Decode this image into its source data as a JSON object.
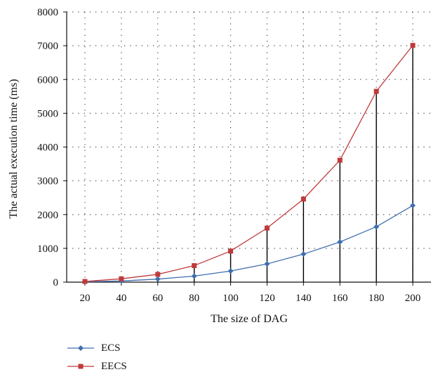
{
  "chart_data": {
    "type": "line",
    "title": "",
    "xlabel": "The size of DAG",
    "ylabel": "The actual execution time (ms)",
    "categories": [
      "20",
      "40",
      "60",
      "80",
      "100",
      "120",
      "140",
      "160",
      "180",
      "200"
    ],
    "x": [
      20,
      40,
      60,
      80,
      100,
      120,
      140,
      160,
      180,
      200
    ],
    "xlim": [
      10,
      210
    ],
    "ylim": [
      0,
      8000
    ],
    "yticks": [
      "0",
      "1000",
      "2000",
      "3000",
      "4000",
      "5000",
      "6000",
      "7000",
      "8000"
    ],
    "series": [
      {
        "name": "ECS",
        "color": "#3f6fad",
        "marker": "diamond",
        "values": [
          10,
          35,
          90,
          180,
          330,
          540,
          830,
          1190,
          1640,
          2270
        ]
      },
      {
        "name": "EECS",
        "color": "#c0393b",
        "marker": "square",
        "values": [
          20,
          100,
          230,
          490,
          920,
          1600,
          2460,
          3610,
          5650,
          7010
        ]
      }
    ],
    "drop_lines": true,
    "grid": "dotted",
    "legend_position": "bottom-left"
  }
}
